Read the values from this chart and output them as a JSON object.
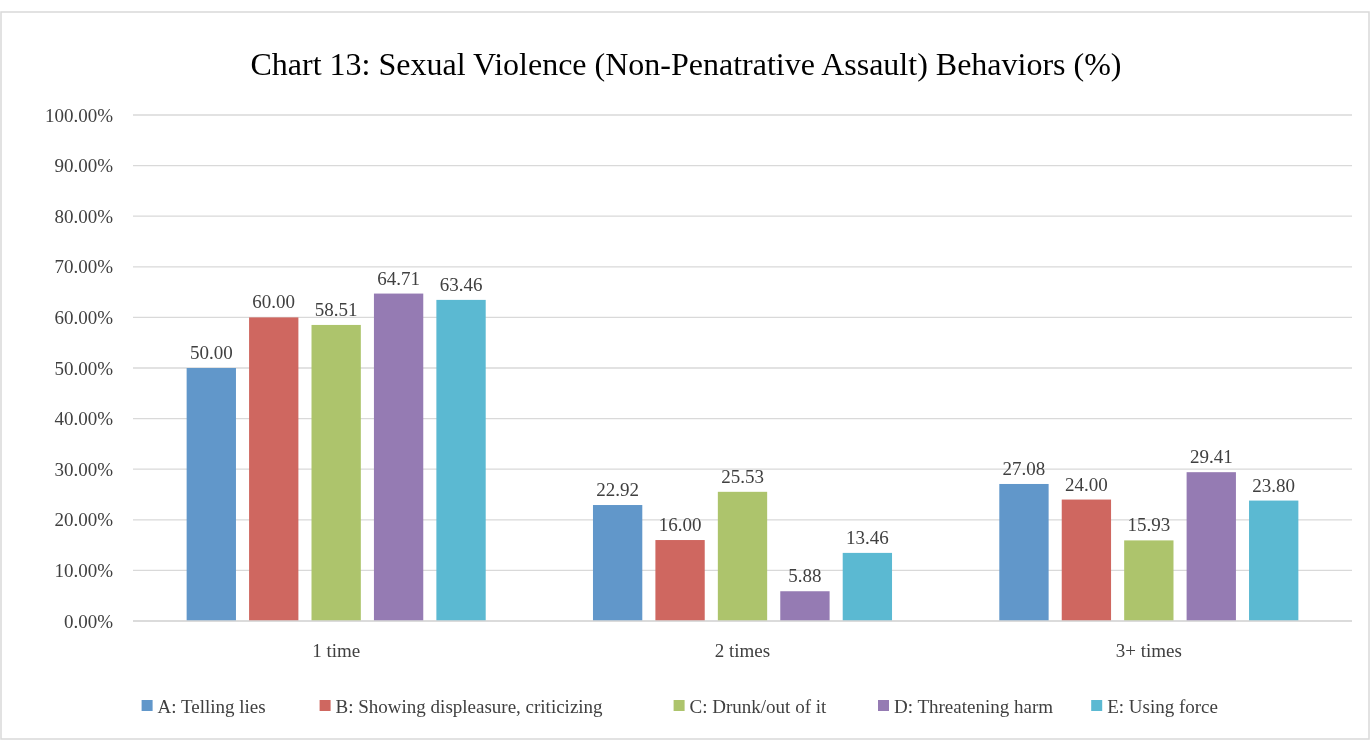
{
  "chart_data": {
    "type": "bar",
    "title": "Chart 13: Sexual Violence (Non-Penatrative Assault) Behaviors (%)",
    "categories": [
      "1 time",
      "2 times",
      "3+ times"
    ],
    "series": [
      {
        "name": "A: Telling lies",
        "color": "#6197ca",
        "values": [
          50.0,
          22.92,
          27.08
        ],
        "value_labels": [
          "50.00",
          "22.92",
          "27.08"
        ]
      },
      {
        "name": "B: Showing displeasure, criticizing",
        "color": "#cf6760",
        "values": [
          60.0,
          16.0,
          24.0
        ],
        "value_labels": [
          "60.00",
          "16.00",
          "24.00"
        ]
      },
      {
        "name": "C: Drunk/out of it",
        "color": "#adc46c",
        "values": [
          58.51,
          25.53,
          15.93
        ],
        "value_labels": [
          "58.51",
          "25.53",
          "15.93"
        ]
      },
      {
        "name": "D: Threatening harm",
        "color": "#957bb3",
        "values": [
          64.71,
          5.88,
          29.41
        ],
        "value_labels": [
          "64.71",
          "5.88",
          "29.41"
        ]
      },
      {
        "name": "E: Using force",
        "color": "#5bb9d2",
        "values": [
          63.46,
          13.46,
          23.8
        ],
        "value_labels": [
          "63.46",
          "13.46",
          "23.80"
        ]
      }
    ],
    "ylim": [
      0,
      100
    ],
    "yticks": [
      {
        "value": 0,
        "label": "0.00%"
      },
      {
        "value": 10,
        "label": "10.00%"
      },
      {
        "value": 20,
        "label": "20.00%"
      },
      {
        "value": 30,
        "label": "30.00%"
      },
      {
        "value": 40,
        "label": "40.00%"
      },
      {
        "value": 50,
        "label": "50.00%"
      },
      {
        "value": 60,
        "label": "60.00%"
      },
      {
        "value": 70,
        "label": "70.00%"
      },
      {
        "value": 80,
        "label": "80.00%"
      },
      {
        "value": 90,
        "label": "90.00%"
      },
      {
        "value": 100,
        "label": "100.00%"
      }
    ],
    "grid": "y",
    "legend": "bottom"
  }
}
